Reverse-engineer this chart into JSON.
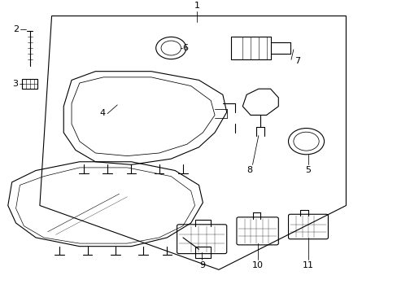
{
  "bg_color": "#ffffff",
  "line_color": "#000000",
  "fig_width": 4.89,
  "fig_height": 3.6,
  "dpi": 100,
  "label_fontsize": 8
}
